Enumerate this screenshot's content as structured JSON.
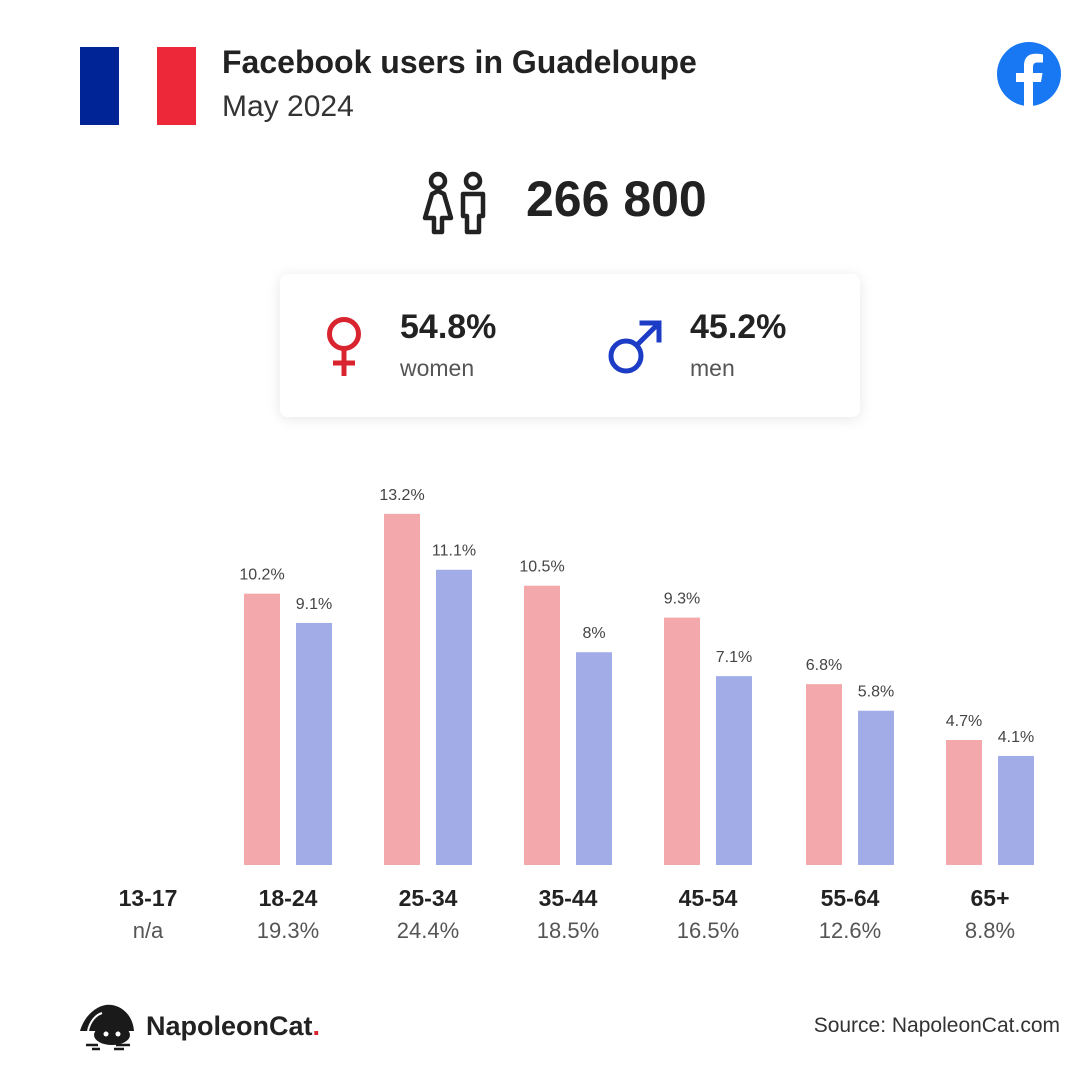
{
  "header": {
    "title": "Facebook users in Guadeloupe",
    "subtitle": "May 2024"
  },
  "flag": {
    "colors": [
      "#002395",
      "#ffffff",
      "#ed2939"
    ]
  },
  "icons": {
    "facebook": "facebook-logo-icon",
    "people": "people-icon",
    "female": "female-icon",
    "male": "male-icon"
  },
  "total_users": "266 800",
  "gender": {
    "women": {
      "percent": "54.8%",
      "label": "women",
      "color": "#d9242f"
    },
    "men": {
      "percent": "45.2%",
      "label": "men",
      "color": "#1c3cc6"
    }
  },
  "chart_data": {
    "type": "bar",
    "categories": [
      "13-17",
      "18-24",
      "25-34",
      "35-44",
      "45-54",
      "55-64",
      "65+"
    ],
    "category_totals": [
      "n/a",
      "19.3%",
      "24.4%",
      "18.5%",
      "16.5%",
      "12.6%",
      "8.8%"
    ],
    "series": [
      {
        "values": [
          null,
          10.2,
          13.2,
          10.5,
          9.3,
          6.8,
          4.7
        ],
        "labels": [
          "",
          "10.2%",
          "13.2%",
          "10.5%",
          "9.3%",
          "6.8%",
          "4.7%"
        ],
        "color": "#f3a9ab"
      },
      {
        "values": [
          null,
          9.1,
          11.1,
          8.0,
          7.1,
          5.8,
          4.1
        ],
        "labels": [
          "",
          "9.1%",
          "11.1%",
          "8%",
          "7.1%",
          "5.8%",
          "4.1%"
        ],
        "color": "#a2ade8"
      }
    ],
    "ylim": [
      0,
      14
    ],
    "grid": false,
    "legend": "none"
  },
  "footer": {
    "brand": "NapoleonCat",
    "brand_dot": ".",
    "source": "Source: NapoleonCat.com"
  }
}
